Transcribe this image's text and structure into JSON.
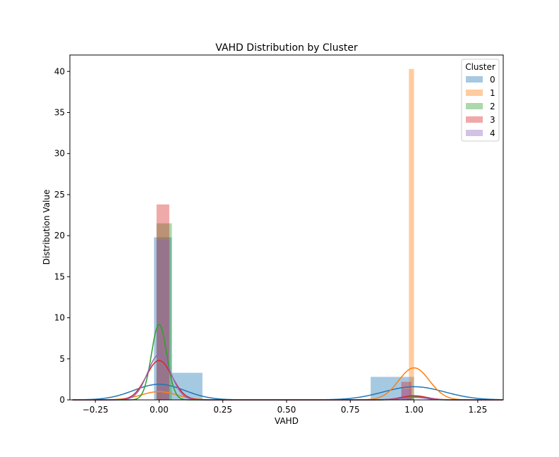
{
  "chart_data": {
    "type": "histogram-kde",
    "title": "VAHD Distribution by Cluster",
    "xlabel": "VAHD",
    "ylabel": "Distribution Value",
    "xlim": [
      -0.35,
      1.35
    ],
    "ylim": [
      0,
      42
    ],
    "xticks": [
      -0.25,
      0.0,
      0.25,
      0.5,
      0.75,
      1.0,
      1.25
    ],
    "xtick_labels": [
      "−0.25",
      "0.00",
      "0.25",
      "0.50",
      "0.75",
      "1.00",
      "1.25"
    ],
    "yticks": [
      0,
      5,
      10,
      15,
      20,
      25,
      30,
      35,
      40
    ],
    "ytick_labels": [
      "0",
      "5",
      "10",
      "15",
      "20",
      "25",
      "30",
      "35",
      "40"
    ],
    "grid": false,
    "legend": {
      "title": "Cluster",
      "placement": "top-right"
    },
    "series": [
      {
        "name": "0",
        "color": "#1f77b4",
        "bins": [
          {
            "x0": -0.02,
            "x1": 0.05,
            "y": 19.8
          },
          {
            "x0": 0.05,
            "x1": 0.17,
            "y": 3.3
          },
          {
            "x0": 0.83,
            "x1": 1.0,
            "y": 2.8
          }
        ],
        "kde": {
          "peaks": [
            {
              "mu": 0.0,
              "sigma": 0.1,
              "amp": 1.9
            },
            {
              "mu": 1.0,
              "sigma": 0.12,
              "amp": 1.6
            }
          ]
        }
      },
      {
        "name": "1",
        "color": "#ff7f0e",
        "bins": [
          {
            "x0": -0.01,
            "x1": 0.01,
            "y": 0.9
          },
          {
            "x0": 0.98,
            "x1": 1.0,
            "y": 40.3
          }
        ],
        "kde": {
          "peaks": [
            {
              "mu": 0.0,
              "sigma": 0.07,
              "amp": 1.0
            },
            {
              "mu": 1.0,
              "sigma": 0.06,
              "amp": 3.9
            }
          ]
        }
      },
      {
        "name": "2",
        "color": "#2ca02c",
        "bins": [
          {
            "x0": -0.01,
            "x1": 0.05,
            "y": 21.5
          },
          {
            "x0": 0.97,
            "x1": 1.0,
            "y": 0.5
          }
        ],
        "kde": {
          "peaks": [
            {
              "mu": 0.0,
              "sigma": 0.03,
              "amp": 9.2
            },
            {
              "mu": 1.0,
              "sigma": 0.04,
              "amp": 0.4
            }
          ]
        }
      },
      {
        "name": "3",
        "color": "#d62728",
        "bins": [
          {
            "x0": -0.01,
            "x1": 0.04,
            "y": 23.8
          },
          {
            "x0": 0.95,
            "x1": 0.99,
            "y": 2.2
          }
        ],
        "kde": {
          "peaks": [
            {
              "mu": 0.0,
              "sigma": 0.05,
              "amp": 4.8
            },
            {
              "mu": 1.0,
              "sigma": 0.05,
              "amp": 0.5
            }
          ]
        }
      },
      {
        "name": "4",
        "color": "#9467bd",
        "bins": [
          {
            "x0": -0.01,
            "x1": 0.04,
            "y": 19.5
          },
          {
            "x0": 0.95,
            "x1": 0.99,
            "y": 1.3
          }
        ],
        "kde": {
          "peaks": [
            {
              "mu": 0.0,
              "sigma": 0.045,
              "amp": 5.5
            },
            {
              "mu": 1.0,
              "sigma": 0.05,
              "amp": 0.3
            }
          ]
        }
      }
    ]
  }
}
